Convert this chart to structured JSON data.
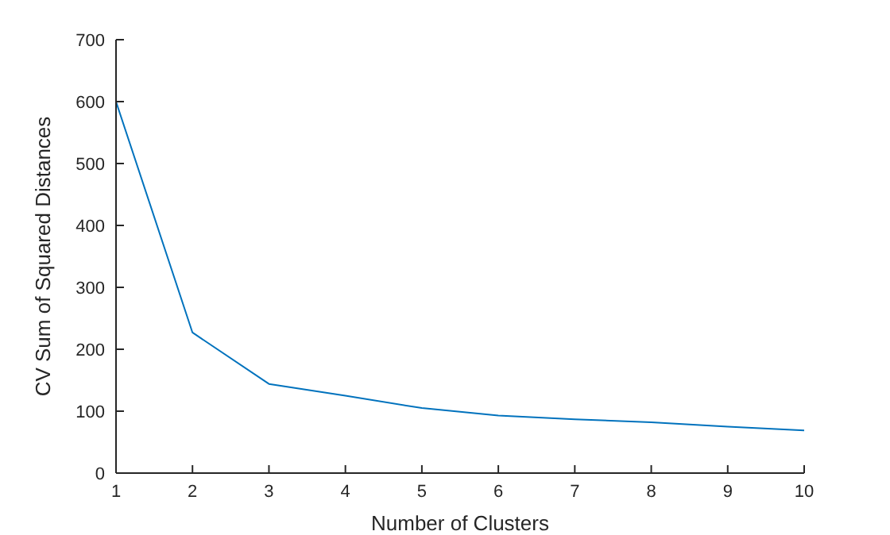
{
  "chart_data": {
    "type": "line",
    "xlabel": "Number of Clusters",
    "ylabel": "CV Sum of Squared Distances",
    "x": [
      1,
      2,
      3,
      4,
      5,
      6,
      7,
      8,
      9,
      10
    ],
    "series": [
      {
        "color": "#0072bd",
        "values": [
          600,
          227,
          144,
          125,
          105,
          93,
          87,
          82,
          75,
          69
        ]
      }
    ],
    "xlim": [
      1,
      10
    ],
    "xticks": [
      1,
      2,
      3,
      4,
      5,
      6,
      7,
      8,
      9,
      10
    ],
    "ylim": [
      0,
      700
    ],
    "yticks": [
      0,
      100,
      200,
      300,
      400,
      500,
      600,
      700
    ],
    "grid": false,
    "legend": false,
    "marker": "none",
    "line_style": "solid"
  }
}
